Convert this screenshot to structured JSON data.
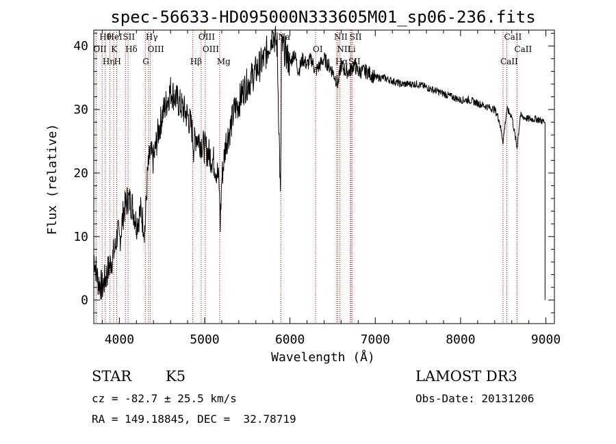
{
  "chart_data": {
    "type": "line",
    "title": "spec-56633-HD095000N333605M01_sp06-236.fits",
    "xlabel": "Wavelength (Å)",
    "ylabel": "Flux (relative)",
    "xlim": [
      3700,
      9100
    ],
    "ylim": [
      -3.7,
      42.5
    ],
    "xticks": [
      4000,
      5000,
      6000,
      7000,
      8000,
      9000
    ],
    "yticks": [
      0,
      10,
      20,
      30,
      40
    ],
    "series": [
      {
        "x": [
          3700,
          3750,
          3800,
          3850,
          3900,
          3950,
          3980,
          4000,
          4050,
          4100,
          4150,
          4200,
          4250,
          4300,
          4330,
          4360,
          4400,
          4450,
          4500,
          4550,
          4600,
          4650,
          4700,
          4750,
          4800,
          4850,
          4870,
          4900,
          4950,
          5000,
          5050,
          5100,
          5150,
          5170,
          5183,
          5200,
          5250,
          5300,
          5350,
          5400,
          5450,
          5500,
          5550,
          5600,
          5650,
          5700,
          5750,
          5800,
          5850,
          5889,
          5895,
          5900,
          5950,
          6000,
          6050,
          6100,
          6150,
          6200,
          6250,
          6300,
          6350,
          6400,
          6450,
          6500,
          6563,
          6600,
          6650,
          6700,
          6750,
          6800,
          6900,
          7000,
          7100,
          7200,
          7300,
          7400,
          7500,
          7600,
          7700,
          7800,
          7900,
          8000,
          8100,
          8200,
          8300,
          8400,
          8450,
          8498,
          8542,
          8600,
          8662,
          8700,
          8800,
          8900,
          8990
        ],
        "y": [
          7,
          3,
          2,
          4,
          6,
          8,
          11,
          9,
          14,
          16,
          15,
          12,
          14,
          11,
          20,
          23,
          22,
          26,
          29,
          31,
          33,
          32,
          31,
          30,
          29,
          27,
          24,
          26,
          25,
          24,
          23,
          22,
          20,
          18,
          12,
          19,
          25,
          27,
          30,
          31,
          33,
          34,
          35,
          36,
          37,
          38,
          40,
          42,
          40,
          16,
          25,
          40,
          39,
          37,
          39,
          36,
          38,
          37,
          38,
          36,
          37,
          38,
          37,
          36,
          34,
          37,
          36,
          36,
          37,
          36,
          36,
          35,
          35,
          34.5,
          34,
          34,
          34,
          33.5,
          33,
          32.5,
          32,
          31.5,
          31.5,
          31,
          30.5,
          30,
          28.5,
          25,
          30,
          29,
          24,
          29,
          28.5,
          28.5,
          28
        ]
      }
    ],
    "spectral_lines": [
      {
        "label": "Hθ",
        "x": 3798
      },
      {
        "label": "OII",
        "x": 3727
      },
      {
        "label": "Hη",
        "x": 3835
      },
      {
        "label": "HeI",
        "x": 3889
      },
      {
        "label": "K",
        "x": 3934
      },
      {
        "label": "H",
        "x": 3969
      },
      {
        "label": "SII",
        "x": 4072
      },
      {
        "label": "Hδ",
        "x": 4102
      },
      {
        "label": "G",
        "x": 4304
      },
      {
        "label": "Hγ",
        "x": 4341
      },
      {
        "label": "OIII",
        "x": 4363
      },
      {
        "label": "Hβ",
        "x": 4861
      },
      {
        "label": "OIII",
        "x": 4959
      },
      {
        "label": "OIII",
        "x": 5007
      },
      {
        "label": "Mg",
        "x": 5175
      },
      {
        "label": "Na",
        "x": 5893
      },
      {
        "label": "OI",
        "x": 6300
      },
      {
        "label": "Hα",
        "x": 6563
      },
      {
        "label": "NII",
        "x": 6548
      },
      {
        "label": "NII",
        "x": 6584
      },
      {
        "label": "SII",
        "x": 6717
      },
      {
        "label": "SII",
        "x": 6731
      },
      {
        "label": "Li",
        "x": 6708
      },
      {
        "label": "CaII",
        "x": 8498
      },
      {
        "label": "CaII",
        "x": 8542
      },
      {
        "label": "CaII",
        "x": 8662
      }
    ]
  },
  "info": {
    "class": "STAR",
    "subclass": "K5",
    "cz": "cz = -82.7 ± 25.5 km/s",
    "radec": "RA = 149.18845, DEC =  32.78719",
    "survey": "LAMOST DR3",
    "obsdate": "Obs-Date: 20131206"
  }
}
